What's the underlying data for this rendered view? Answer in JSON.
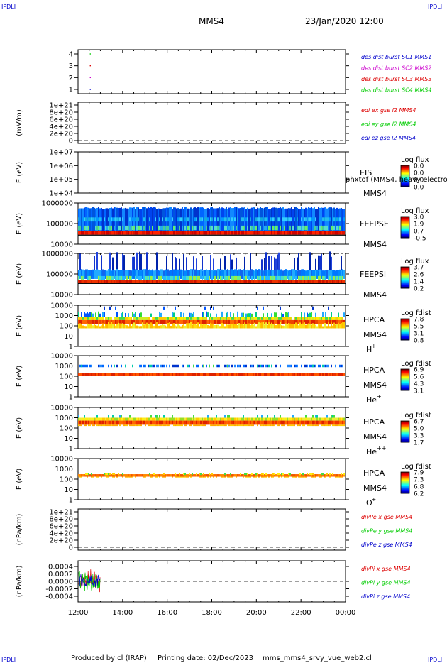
{
  "corner_label": "IPDLI",
  "header": {
    "mission": "MMS4",
    "date": "23/Jan/2020 12:00"
  },
  "footer": {
    "produced_by": "Produced by cl (IRAP)",
    "printing_date": "Printing date: 02/Dec/2023",
    "filename": "mms_mms4_srvy_vue_web2.cl"
  },
  "x_axis": {
    "ticks": [
      "12:00",
      "14:00",
      "16:00",
      "18:00",
      "20:00",
      "22:00",
      "00:00"
    ],
    "range_hours": [
      12,
      24
    ]
  },
  "colors": {
    "blue": "#0000cc",
    "magenta": "#cc00cc",
    "red": "#dd0000",
    "green": "#00cc00",
    "spectro_bg": "#ffffff"
  },
  "chart_data": [
    {
      "type": "scatter",
      "panel": "des-dist-burst",
      "yticks": [
        "4",
        "3",
        "2",
        "1"
      ],
      "ylim": [
        0.5,
        4.5
      ],
      "series": [
        {
          "name": "des dist burst SC1 MMS1",
          "color": "#0000cc",
          "x": [
            12.55
          ],
          "y": [
            1
          ]
        },
        {
          "name": "des dist burst SC2 MMS2",
          "color": "#cc00cc",
          "x": [
            12.55
          ],
          "y": [
            2
          ]
        },
        {
          "name": "des dist burst SC3 MMS3",
          "color": "#dd0000",
          "x": [
            12.55
          ],
          "y": [
            3
          ]
        },
        {
          "name": "des dist burst SC4 MMS4",
          "color": "#00cc00",
          "x": [
            12.55
          ],
          "y": [
            4
          ]
        }
      ]
    },
    {
      "type": "line",
      "panel": "edi",
      "ylabel": "(mV/m)",
      "yticks": [
        "1e+21",
        "8e+20",
        "6e+20",
        "4e+20",
        "2e+20",
        "0"
      ],
      "dashed_zero": true,
      "series": [
        {
          "name": "edi ex gse l2 MMS4",
          "color": "#dd0000"
        },
        {
          "name": "edi ey gse l2 MMS4",
          "color": "#00cc00"
        },
        {
          "name": "edi ez gse l2 MMS4",
          "color": "#0000cc"
        }
      ]
    },
    {
      "type": "heatmap",
      "panel": "eis",
      "ylabel": "E (eV)",
      "yticks": [
        "1e+07",
        "1e+06",
        "1e+05",
        "1e+04"
      ],
      "label1": "EIS",
      "label2": "MMS4",
      "overlay_text": "phxtof (MMS4, heavy electron to",
      "cbar_title": "Log flux",
      "cbar_ticks": [
        "0.0",
        "0.0",
        "0.0",
        "0.0"
      ]
    },
    {
      "type": "heatmap",
      "panel": "feepse",
      "ylabel": "E (eV)",
      "yticks": [
        "1000000",
        "100000",
        "10000"
      ],
      "label1": "FEEPSE",
      "label2": "MMS4",
      "cbar_title": "Log flux",
      "cbar_ticks": [
        "3.0",
        "1.9",
        "0.7",
        "-0.5"
      ]
    },
    {
      "type": "heatmap",
      "panel": "feepsi",
      "ylabel": "E (eV)",
      "yticks": [
        "1000000",
        "100000",
        "10000"
      ],
      "label1": "FEEPSI",
      "label2": "MMS4",
      "cbar_title": "Log flux",
      "cbar_ticks": [
        "3.7",
        "2.6",
        "1.4",
        "0.2"
      ]
    },
    {
      "type": "heatmap",
      "panel": "hpca-h",
      "ylabel": "E (eV)",
      "yticks": [
        "10000",
        "1000",
        "100",
        "10",
        "1"
      ],
      "label1": "HPCA",
      "label2": "MMS4",
      "species": "H",
      "charge": "+",
      "cbar_title": "Log fdist",
      "cbar_ticks": [
        "7.8",
        "5.5",
        "3.1",
        "0.8"
      ]
    },
    {
      "type": "heatmap",
      "panel": "hpca-he",
      "ylabel": "E (eV)",
      "yticks": [
        "10000",
        "1000",
        "100",
        "10",
        "1"
      ],
      "label1": "HPCA",
      "label2": "MMS4",
      "species": "He",
      "charge": "+",
      "cbar_title": "Log fdist",
      "cbar_ticks": [
        "6.9",
        "5.6",
        "4.3",
        "3.1"
      ]
    },
    {
      "type": "heatmap",
      "panel": "hpca-he2",
      "ylabel": "E (eV)",
      "yticks": [
        "10000",
        "1000",
        "100",
        "10",
        "1"
      ],
      "label1": "HPCA",
      "label2": "MMS4",
      "species": "He",
      "charge": "++",
      "cbar_title": "Log fdist",
      "cbar_ticks": [
        "6.7",
        "5.0",
        "3.3",
        "1.7"
      ]
    },
    {
      "type": "heatmap",
      "panel": "hpca-o",
      "ylabel": "E (eV)",
      "yticks": [
        "10000",
        "1000",
        "100",
        "10",
        "1"
      ],
      "label1": "HPCA",
      "label2": "MMS4",
      "species": "O",
      "charge": "+",
      "cbar_title": "Log fdist",
      "cbar_ticks": [
        "7.9",
        "7.3",
        "6.8",
        "6.2"
      ]
    },
    {
      "type": "line",
      "panel": "divpe",
      "ylabel": "(nPa/km)",
      "yticks": [
        "1e+21",
        "8e+20",
        "6e+20",
        "4e+20",
        "2e+20",
        "0"
      ],
      "dashed_zero": true,
      "series": [
        {
          "name": "divPe x gse MMS4",
          "color": "#dd0000"
        },
        {
          "name": "divPe y gse MMS4",
          "color": "#00cc00"
        },
        {
          "name": "divPe z gse MMS4",
          "color": "#0000cc"
        }
      ]
    },
    {
      "type": "line",
      "panel": "divpi",
      "ylabel": "(nPa/km)",
      "yticks": [
        "0.0004",
        "0.0002",
        "0.0000",
        "-0.0002",
        "-0.0004"
      ],
      "ylim": [
        -0.0005,
        0.0005
      ],
      "dashed_zero": true,
      "data_end_hour": 13.0,
      "series": [
        {
          "name": "divPi x gse MMS4",
          "color": "#dd0000"
        },
        {
          "name": "divPi y gse MMS4",
          "color": "#00cc00"
        },
        {
          "name": "divPi z gse MMS4",
          "color": "#0000cc"
        }
      ]
    }
  ]
}
